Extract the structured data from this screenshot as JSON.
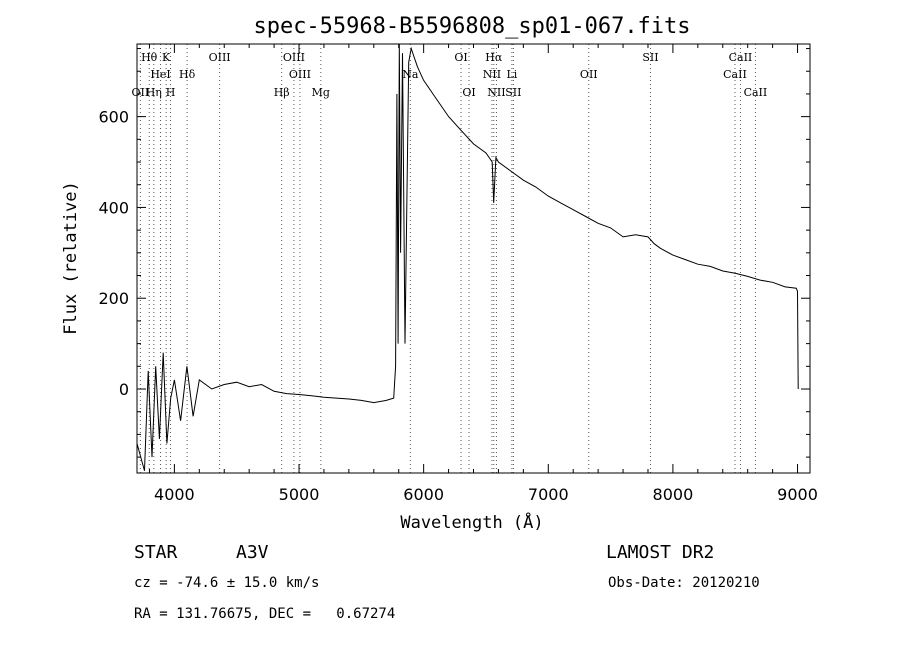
{
  "chart_data": {
    "type": "line",
    "title": "spec-55968-B5596808_sp01-067.fits",
    "xlabel": "Wavelength (Å)",
    "ylabel": "Flux (relative)",
    "xlim": [
      3700,
      9100
    ],
    "ylim": [
      -185,
      760
    ],
    "xticks": [
      4000,
      5000,
      6000,
      7000,
      8000,
      9000
    ],
    "yticks": [
      0,
      200,
      400,
      600
    ],
    "grid": false,
    "series": [
      {
        "x": [
          3700,
          3760,
          3790,
          3820,
          3850,
          3880,
          3910,
          3940,
          3970,
          4000,
          4050,
          4100,
          4150,
          4200,
          4300,
          4400,
          4500,
          4600,
          4700,
          4800,
          4900,
          5000,
          5100,
          5200,
          5300,
          5400,
          5500,
          5600,
          5700,
          5760,
          5775,
          5785,
          5795,
          5805,
          5815,
          5830,
          5850,
          5880,
          5900,
          5950,
          6000,
          6100,
          6200,
          6300,
          6400,
          6500,
          6550,
          6562,
          6580,
          6600,
          6700,
          6800,
          6900,
          7000,
          7100,
          7200,
          7300,
          7400,
          7500,
          7600,
          7700,
          7800,
          7850,
          7900,
          8000,
          8100,
          8200,
          8300,
          8400,
          8500,
          8600,
          8700,
          8800,
          8900,
          8990,
          9000,
          9005
        ],
        "y": [
          -120,
          -180,
          40,
          -150,
          50,
          -110,
          80,
          -120,
          -20,
          20,
          -70,
          50,
          -60,
          20,
          0,
          10,
          15,
          5,
          10,
          -5,
          -10,
          -12,
          -15,
          -18,
          -20,
          -22,
          -25,
          -30,
          -25,
          -20,
          50,
          650,
          100,
          760,
          300,
          740,
          100,
          720,
          750,
          710,
          680,
          640,
          600,
          570,
          540,
          520,
          500,
          410,
          510,
          500,
          480,
          460,
          445,
          425,
          410,
          395,
          380,
          365,
          355,
          335,
          340,
          335,
          320,
          310,
          295,
          285,
          275,
          270,
          260,
          255,
          248,
          240,
          235,
          225,
          222,
          215,
          0
        ]
      }
    ],
    "lines": [
      {
        "label": "Hθ",
        "x": 3798,
        "row": 0
      },
      {
        "label": "K",
        "x": 3934,
        "row": 0
      },
      {
        "label": "OIII",
        "x": 4363,
        "row": 0
      },
      {
        "label": "OIII",
        "x": 4959,
        "row": 0
      },
      {
        "label": "OI",
        "x": 6300,
        "row": 0
      },
      {
        "label": "Hα",
        "x": 6563,
        "row": 0
      },
      {
        "label": "SII",
        "x": 7820,
        "row": 0
      },
      {
        "label": "CaII",
        "x": 8542,
        "row": 0
      },
      {
        "label": "HeI",
        "x": 3889,
        "row": 1
      },
      {
        "label": "Hδ",
        "x": 4102,
        "row": 1
      },
      {
        "label": "OIII",
        "x": 5007,
        "row": 1
      },
      {
        "label": "Na",
        "x": 5893,
        "row": 1
      },
      {
        "label": "NII",
        "x": 6548,
        "row": 1
      },
      {
        "label": "Li",
        "x": 6708,
        "row": 1
      },
      {
        "label": "OII",
        "x": 7325,
        "row": 1
      },
      {
        "label": "CaII",
        "x": 8498,
        "row": 1
      },
      {
        "label": "OII",
        "x": 3727,
        "row": 2
      },
      {
        "label": "Hη",
        "x": 3835,
        "row": 2
      },
      {
        "label": "H",
        "x": 3969,
        "row": 2
      },
      {
        "label": "Hβ",
        "x": 4861,
        "row": 2
      },
      {
        "label": "Mg",
        "x": 5175,
        "row": 2
      },
      {
        "label": "OI",
        "x": 6364,
        "row": 2
      },
      {
        "label": "NII",
        "x": 6584,
        "row": 2
      },
      {
        "label": "SII",
        "x": 6720,
        "row": 2
      },
      {
        "label": "CaII",
        "x": 8662,
        "row": 2
      }
    ]
  },
  "info": {
    "object_class": "STAR",
    "subclass": "A3V",
    "survey": "LAMOST DR2",
    "redshift": "cz = -74.6 ± 15.0 km/s",
    "obs_date": "Obs-Date: 20120210",
    "coords": "RA = 131.76675, DEC =   0.67274"
  }
}
